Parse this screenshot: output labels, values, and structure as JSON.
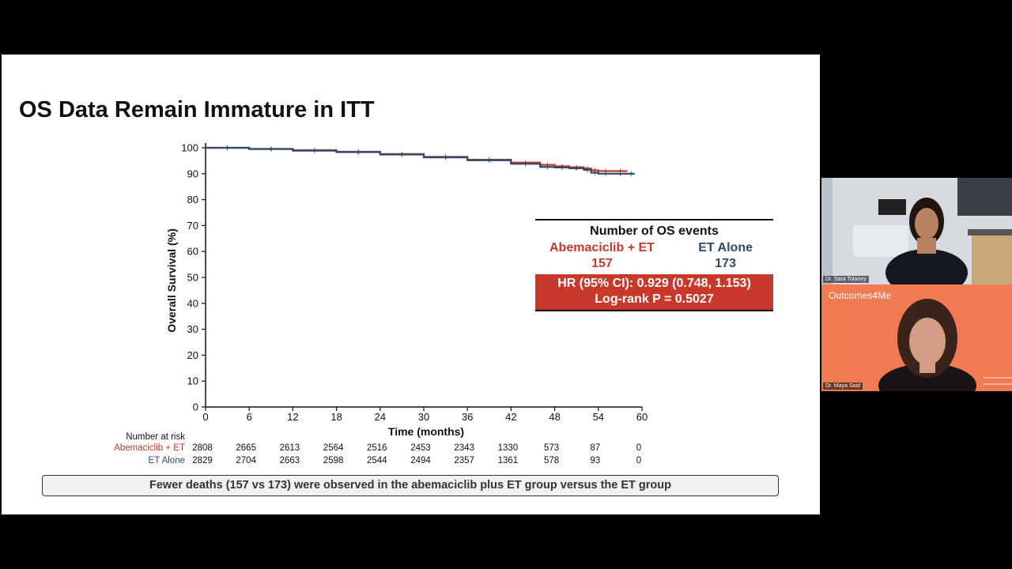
{
  "slide": {
    "title": "OS Data Remain Immature in ITT",
    "banner": "Fewer deaths (157 vs 173) were observed in the abemaciclib plus ET group versus the ET group"
  },
  "chart_data": {
    "type": "line",
    "xlabel": "Time (months)",
    "ylabel": "Overall Survival (%)",
    "xlim": [
      0,
      60
    ],
    "ylim": [
      0,
      100
    ],
    "xticks": [
      0,
      6,
      12,
      18,
      24,
      30,
      36,
      42,
      48,
      54,
      60
    ],
    "yticks": [
      0,
      10,
      20,
      30,
      40,
      50,
      60,
      70,
      80,
      90,
      100
    ],
    "series": [
      {
        "name": "Abemaciclib + ET",
        "color": "#c0392b",
        "x": [
          0,
          6,
          12,
          18,
          24,
          30,
          36,
          42,
          46,
          48,
          50,
          52,
          53,
          54,
          56,
          58
        ],
        "y": [
          100,
          99.6,
          99.1,
          98.5,
          97.6,
          96.5,
          95.4,
          94.3,
          93.4,
          92.9,
          92.5,
          92.0,
          91.3,
          91.0,
          91.0,
          91.0
        ]
      },
      {
        "name": "ET Alone",
        "color": "#2e4a6b",
        "x": [
          0,
          6,
          12,
          18,
          24,
          30,
          36,
          42,
          46,
          48,
          50,
          52,
          53,
          54,
          56,
          58,
          59
        ],
        "y": [
          100,
          99.5,
          98.9,
          98.3,
          97.4,
          96.3,
          95.2,
          93.8,
          92.6,
          92.4,
          92.1,
          91.5,
          90.4,
          90.0,
          90.0,
          90.0,
          90.0
        ]
      }
    ],
    "risk_table": {
      "title": "Number at risk",
      "rows": [
        {
          "label": "Abemaciclib + ET",
          "color": "#c0392b",
          "values": [
            "2808",
            "2665",
            "2613",
            "2564",
            "2516",
            "2453",
            "2343",
            "1330",
            "573",
            "87",
            "0"
          ]
        },
        {
          "label": "ET Alone",
          "color": "#2e4a6b",
          "values": [
            "2829",
            "2704",
            "2663",
            "2598",
            "2544",
            "2494",
            "2357",
            "1361",
            "578",
            "93",
            "0"
          ]
        }
      ]
    },
    "events_box": {
      "title": "Number of OS events",
      "arm1_label": "Abemaciclib + ET",
      "arm1_value": "157",
      "arm2_label": "ET Alone",
      "arm2_value": "173",
      "hr_line": "HR (95% CI): 0.929 (0.748, 1.153)",
      "p_line": "Log-rank P = 0.5027"
    }
  },
  "participants": [
    {
      "name": "Dr. Sara Tolaney"
    },
    {
      "name": "Dr. Maya Said",
      "brand": "Outcomes4Me"
    }
  ]
}
